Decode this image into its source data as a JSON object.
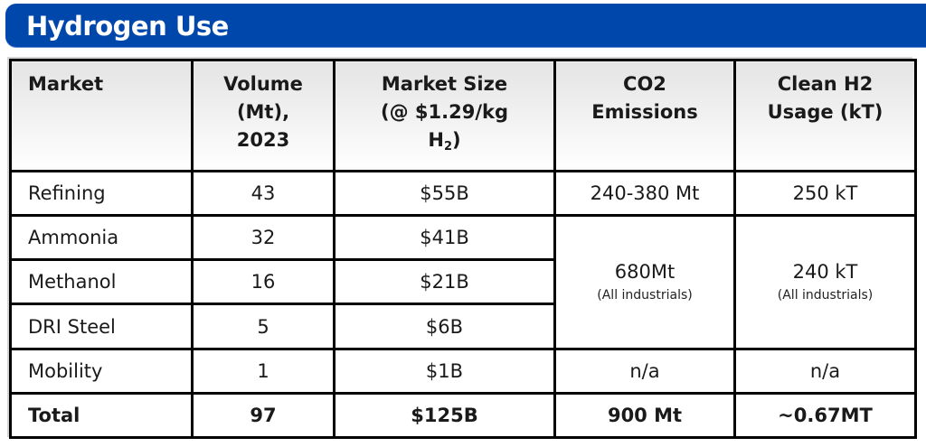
{
  "title": "Hydrogen Use",
  "colors": {
    "title_bar": "#0047AB",
    "title_text": "#ffffff",
    "border": "#000000"
  },
  "table": {
    "headers": [
      {
        "lines": [
          "Market"
        ]
      },
      {
        "lines": [
          "Volume",
          "(Mt),",
          "2023"
        ]
      },
      {
        "lines": [
          "Market Size",
          "(@ $1.29/kg"
        ],
        "last_line_prefix": "H",
        "last_line_sub": "2",
        "last_line_suffix": ")"
      },
      {
        "lines": [
          "CO2",
          "Emissions"
        ]
      },
      {
        "lines": [
          "Clean H2",
          "Usage (kT)"
        ]
      }
    ],
    "rows": [
      {
        "market": "Refining",
        "volume": "43",
        "market_size": "$55B",
        "co2": "240-380 Mt",
        "clean_h2": "250 kT"
      },
      {
        "market": "Ammonia",
        "volume": "32",
        "market_size": "$41B"
      },
      {
        "market": "Methanol",
        "volume": "16",
        "market_size": "$21B"
      },
      {
        "market": "DRI Steel",
        "volume": "5",
        "market_size": "$6B"
      },
      {
        "market": "Mobility",
        "volume": "1",
        "market_size": "$1B",
        "co2": "n/a",
        "clean_h2": "n/a"
      }
    ],
    "merged": {
      "co2": {
        "value": "680Mt",
        "note": "(All industrials)"
      },
      "clean_h2": {
        "value": "240 kT",
        "note": "(All industrials)"
      }
    },
    "total": {
      "market": "Total",
      "volume": "97",
      "market_size": "$125B",
      "co2": "900 Mt",
      "clean_h2": "~0.67MT"
    }
  }
}
